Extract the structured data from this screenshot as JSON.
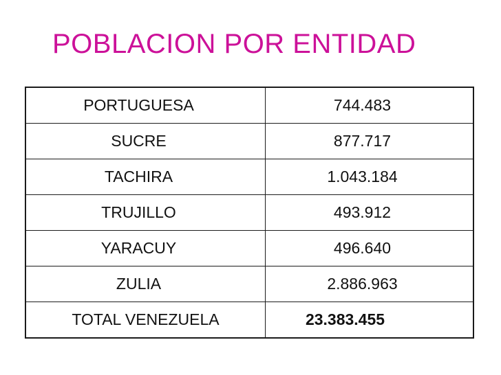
{
  "slide": {
    "title": "POBLACION POR ENTIDAD"
  },
  "table": {
    "rows": [
      {
        "entity": "PORTUGUESA",
        "population": "744.483"
      },
      {
        "entity": "SUCRE",
        "population": "877.717"
      },
      {
        "entity": "TACHIRA",
        "population": "1.043.184"
      },
      {
        "entity": "TRUJILLO",
        "population": "493.912"
      },
      {
        "entity": "YARACUY",
        "population": "496.640"
      },
      {
        "entity": "ZULIA",
        "population": "2.886.963"
      }
    ],
    "total": {
      "entity": "TOTAL VENEZUELA",
      "population": "23.383.455"
    }
  },
  "colors": {
    "title": "#cc1199",
    "text": "#111111",
    "border": "#1a1a1a"
  }
}
